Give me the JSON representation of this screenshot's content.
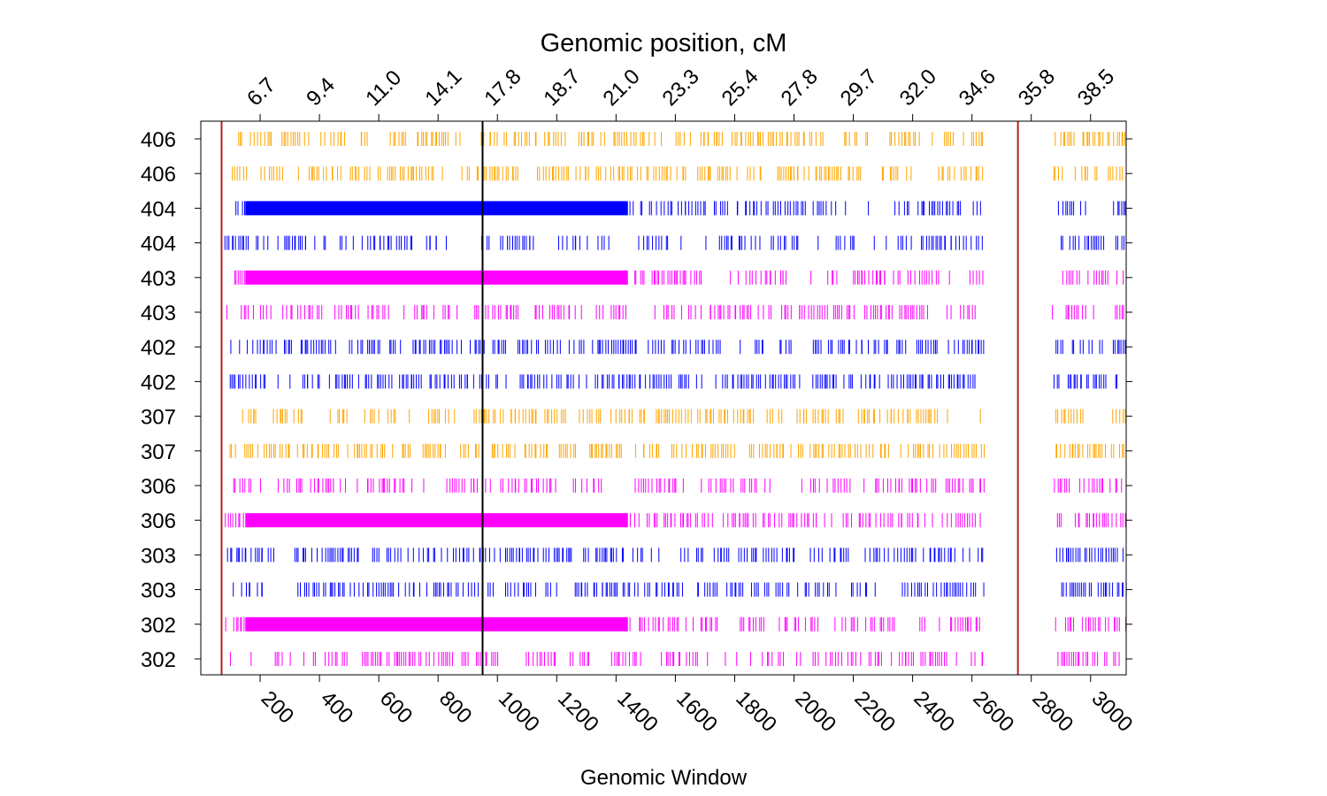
{
  "chart_data": {
    "type": "genome-window strip plot",
    "title": "Genomic position, cM",
    "xlabel": "Genomic Window",
    "xlim": [
      0,
      3120
    ],
    "x_ticks": [
      200,
      400,
      600,
      800,
      1000,
      1200,
      1400,
      1600,
      1800,
      2000,
      2200,
      2400,
      2600,
      2800,
      3000
    ],
    "top_axis": {
      "positions": [
        200,
        400,
        600,
        800,
        1000,
        1200,
        1400,
        1600,
        1800,
        2000,
        2200,
        2400,
        2600,
        2800,
        3000
      ],
      "labels": [
        "6.7",
        "9.4",
        "11.0",
        "14.1",
        "17.8",
        "18.7",
        "21.0",
        "23.3",
        "25.4",
        "27.8",
        "29.7",
        "32.0",
        "34.6",
        "35.8",
        "38.5"
      ]
    },
    "vertical_lines": [
      {
        "x": 70,
        "color": "#b22222"
      },
      {
        "x": 950,
        "color": "#000000"
      },
      {
        "x": 2755,
        "color": "#b22222"
      }
    ],
    "colors": {
      "orange": "#ffa500",
      "blue": "#0000ff",
      "magenta": "#ff00ff"
    },
    "rows": [
      {
        "label": "406",
        "color": "orange"
      },
      {
        "label": "406",
        "color": "orange"
      },
      {
        "label": "404",
        "color": "blue",
        "solid_block": [
          150,
          1440
        ]
      },
      {
        "label": "404",
        "color": "blue"
      },
      {
        "label": "403",
        "color": "magenta",
        "solid_block": [
          150,
          1440
        ]
      },
      {
        "label": "403",
        "color": "magenta"
      },
      {
        "label": "402",
        "color": "blue"
      },
      {
        "label": "402",
        "color": "blue"
      },
      {
        "label": "307",
        "color": "orange"
      },
      {
        "label": "307",
        "color": "orange"
      },
      {
        "label": "306",
        "color": "magenta"
      },
      {
        "label": "306",
        "color": "magenta",
        "solid_block": [
          150,
          1440
        ]
      },
      {
        "label": "303",
        "color": "blue"
      },
      {
        "label": "303",
        "color": "blue"
      },
      {
        "label": "302",
        "color": "magenta",
        "solid_block": [
          150,
          1440
        ]
      },
      {
        "label": "302",
        "color": "magenta"
      }
    ],
    "window_segments": [
      [
        80,
        2640
      ],
      [
        2870,
        3115
      ]
    ]
  }
}
